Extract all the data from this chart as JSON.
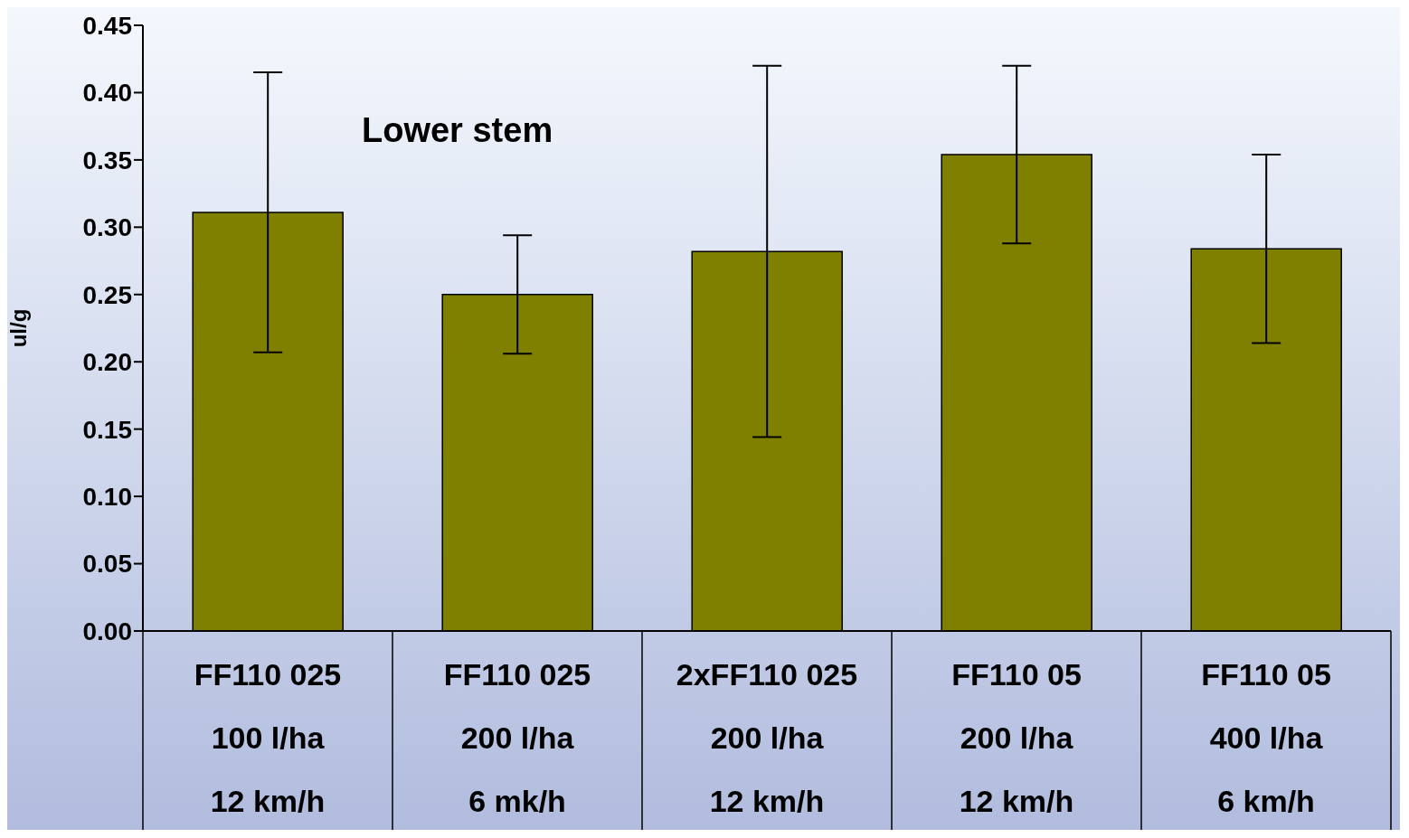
{
  "chart_data": {
    "type": "bar",
    "ylabel": "ul/g",
    "annotations": [
      "Lower stem"
    ],
    "categories": [
      "FF110 025\n100 l/ha\n12 km/h",
      "FF110 025\n200 l/ha\n6 mk/h",
      "2xFF110 025\n200 l/ha\n12 km/h",
      "FF110 05\n200 l/ha\n12 km/h",
      "FF110 05\n400 l/ha\n6 km/h"
    ],
    "values": [
      0.311,
      0.25,
      0.282,
      0.354,
      0.284
    ],
    "errors": [
      0.104,
      0.044,
      0.138,
      0.066,
      0.07
    ],
    "color": "#808000",
    "ylim": [
      0,
      0.45
    ],
    "yticks": [
      {
        "value": 0,
        "label": "0.00"
      },
      {
        "value": 0.05,
        "label": "0.05"
      },
      {
        "value": 0.1,
        "label": "0.10"
      },
      {
        "value": 0.15,
        "label": "0.15"
      },
      {
        "value": 0.2,
        "label": "0.20"
      },
      {
        "value": 0.25,
        "label": "0.25"
      },
      {
        "value": 0.3,
        "label": "0.30"
      },
      {
        "value": 0.35,
        "label": "0.35"
      },
      {
        "value": 0.4,
        "label": "0.40"
      },
      {
        "value": 0.45,
        "label": "0.45"
      }
    ],
    "grid": false
  }
}
